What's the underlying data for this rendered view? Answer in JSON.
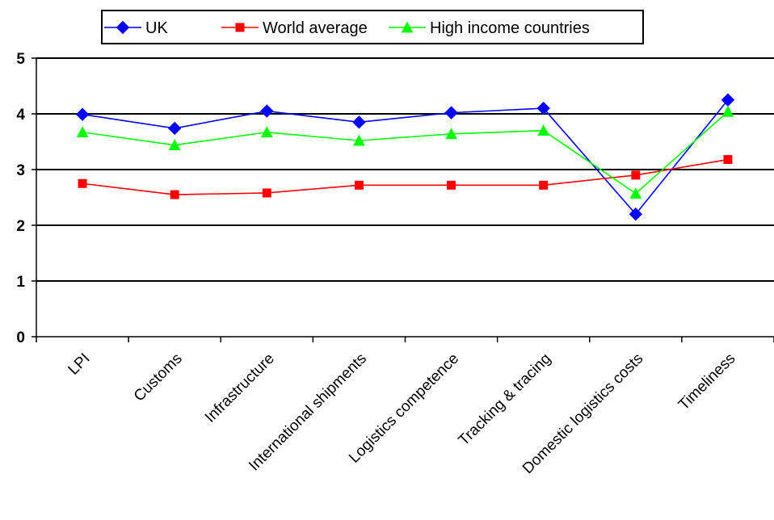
{
  "chart_data": {
    "type": "line",
    "title": "",
    "xlabel": "",
    "ylabel": "",
    "categories": [
      "LPI",
      "Customs",
      "Infrastructure",
      "International shipments",
      "Logistics competence",
      "Tracking & tracing",
      "Domestic logistics costs",
      "Timeliness"
    ],
    "ylim": [
      0,
      5
    ],
    "yticks": [
      0,
      1,
      2,
      3,
      4,
      5
    ],
    "grid": true,
    "legend_position": "top",
    "series": [
      {
        "name": "UK",
        "color": "#0000ff",
        "marker": "diamond",
        "values": [
          3.99,
          3.74,
          4.05,
          3.85,
          4.02,
          4.1,
          2.2,
          4.25
        ]
      },
      {
        "name": "World average",
        "color": "#ff0000",
        "marker": "square",
        "values": [
          2.75,
          2.55,
          2.58,
          2.72,
          2.72,
          2.72,
          2.9,
          3.18
        ]
      },
      {
        "name": "High income countries",
        "color": "#00ff00",
        "marker": "triangle",
        "values": [
          3.67,
          3.44,
          3.67,
          3.52,
          3.64,
          3.7,
          2.57,
          4.04
        ]
      }
    ]
  }
}
